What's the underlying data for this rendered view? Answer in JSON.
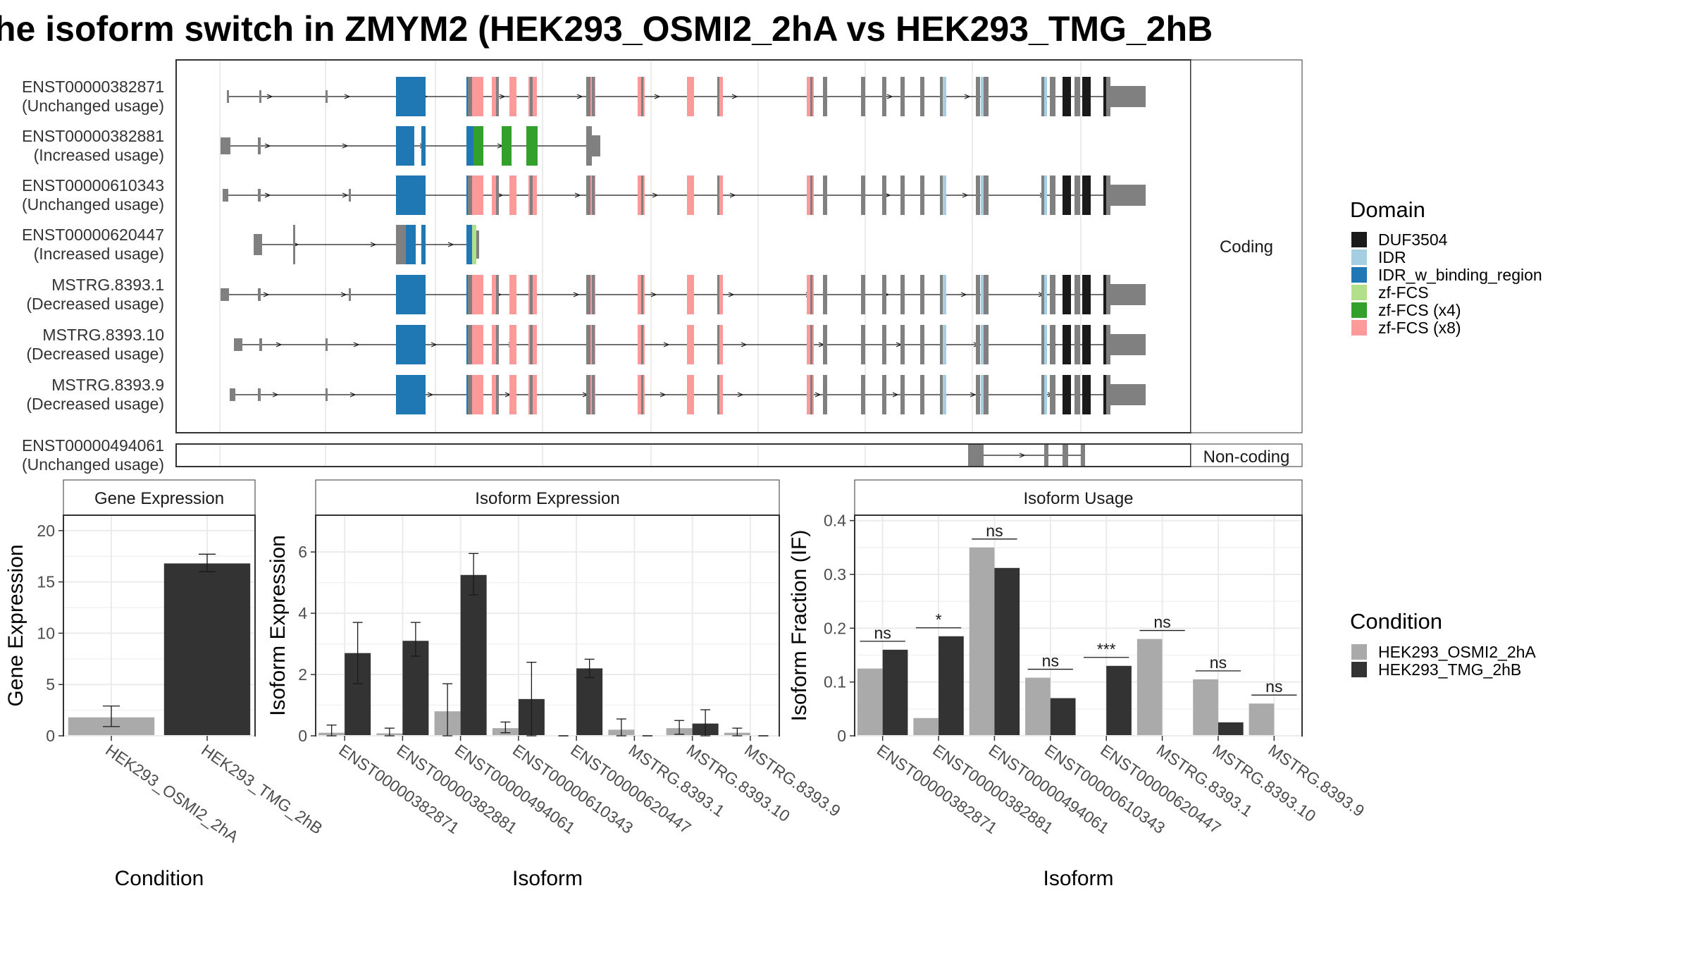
{
  "title": "he isoform switch in ZMYM2 (HEK293_OSMI2_2hA vs HEK293_TMG_2hB",
  "colors": {
    "DUF3504": "#1a1a1a",
    "IDR": "#a6cee3",
    "IDR_w_binding_region": "#1f78b4",
    "zf-FCS": "#b2df8a",
    "zf-FCS (x4)": "#33a02c",
    "zf-FCS (x8)": "#fb9a99",
    "exon_grey": "#808080",
    "cond_a": "#aaaaaa",
    "cond_b": "#333333"
  },
  "transcripts": {
    "strip_labels": {
      "coding": "Coding",
      "noncoding": "Non-coding"
    },
    "rows": [
      {
        "id": "ENST00000382871",
        "usage": "(Unchanged usage)",
        "type": "full"
      },
      {
        "id": "ENST00000382881",
        "usage": "(Increased usage)",
        "type": "short881"
      },
      {
        "id": "ENST00000610343",
        "usage": "(Unchanged usage)",
        "type": "full"
      },
      {
        "id": "ENST00000620447",
        "usage": "(Increased usage)",
        "type": "short447"
      },
      {
        "id": "MSTRG.8393.1",
        "usage": "(Decreased usage)",
        "type": "full"
      },
      {
        "id": "MSTRG.8393.10",
        "usage": "(Decreased usage)",
        "type": "full"
      },
      {
        "id": "MSTRG.8393.9",
        "usage": "(Decreased usage)",
        "type": "full"
      },
      {
        "id": "ENST00000494061",
        "usage": "(Unchanged usage)",
        "type": "noncoding"
      }
    ]
  },
  "legend_domain": {
    "title": "Domain",
    "items": [
      "DUF3504",
      "IDR",
      "IDR_w_binding_region",
      "zf-FCS",
      "zf-FCS (x4)",
      "zf-FCS (x8)"
    ]
  },
  "legend_condition": {
    "title": "Condition",
    "items": [
      "HEK293_OSMI2_2hA",
      "HEK293_TMG_2hB"
    ]
  },
  "chart_data": [
    {
      "type": "bar",
      "title": "Gene Expression",
      "xlabel": "Condition",
      "ylabel": "Gene Expression",
      "ylim": [
        0,
        21.5
      ],
      "yticks": [
        0,
        5,
        10,
        15,
        20
      ],
      "categories": [
        "HEK293_OSMI2_2hA",
        "HEK293_TMG_2hB"
      ],
      "values": [
        1.8,
        16.8
      ],
      "errors": [
        [
          0.9,
          2.9
        ],
        [
          16.0,
          17.7
        ]
      ]
    },
    {
      "type": "bar",
      "title": "Isoform Expression",
      "xlabel": "Isoform",
      "ylabel": "Isoform Expression",
      "ylim": [
        0,
        7.2
      ],
      "yticks": [
        0,
        2,
        4,
        6
      ],
      "categories": [
        "ENST00000382871",
        "ENST00000382881",
        "ENST00000494061",
        "ENST00000610343",
        "ENST00000620447",
        "MSTRG.8393.1",
        "MSTRG.8393.10",
        "MSTRG.8393.9"
      ],
      "series": [
        {
          "name": "HEK293_OSMI2_2hA",
          "values": [
            0.1,
            0.08,
            0.8,
            0.25,
            0.0,
            0.2,
            0.25,
            0.1
          ],
          "errors": [
            [
              0.0,
              0.35
            ],
            [
              0.0,
              0.25
            ],
            [
              0.0,
              1.7
            ],
            [
              0.1,
              0.45
            ],
            [
              0.0,
              0.0
            ],
            [
              0.0,
              0.55
            ],
            [
              0.05,
              0.5
            ],
            [
              0.0,
              0.25
            ]
          ]
        },
        {
          "name": "HEK293_TMG_2hB",
          "values": [
            2.7,
            3.1,
            5.25,
            1.2,
            2.2,
            0.0,
            0.4,
            0.0
          ],
          "errors": [
            [
              1.7,
              3.7
            ],
            [
              2.6,
              3.7
            ],
            [
              4.6,
              5.95
            ],
            [
              0.0,
              2.4
            ],
            [
              1.9,
              2.5
            ],
            [
              0.0,
              0.0
            ],
            [
              0.0,
              0.85
            ],
            [
              0.0,
              0.0
            ]
          ]
        }
      ]
    },
    {
      "type": "bar",
      "title": "Isoform Usage",
      "xlabel": "Isoform",
      "ylabel": "Isoform Fraction (IF)",
      "ylim": [
        0,
        0.41
      ],
      "yticks": [
        0.0,
        0.1,
        0.2,
        0.3,
        0.4
      ],
      "categories": [
        "ENST00000382871",
        "ENST00000382881",
        "ENST00000494061",
        "ENST00000610343",
        "ENST00000620447",
        "MSTRG.8393.1",
        "MSTRG.8393.10",
        "MSTRG.8393.9"
      ],
      "series": [
        {
          "name": "HEK293_OSMI2_2hA",
          "values": [
            0.125,
            0.033,
            0.35,
            0.108,
            0.0,
            0.18,
            0.105,
            0.06
          ]
        },
        {
          "name": "HEK293_TMG_2hB",
          "values": [
            0.16,
            0.185,
            0.312,
            0.07,
            0.13,
            0.0,
            0.025,
            0.0
          ]
        }
      ],
      "significance": [
        "ns",
        "*",
        "ns",
        "ns",
        "***",
        "ns",
        "ns",
        "ns"
      ]
    }
  ]
}
